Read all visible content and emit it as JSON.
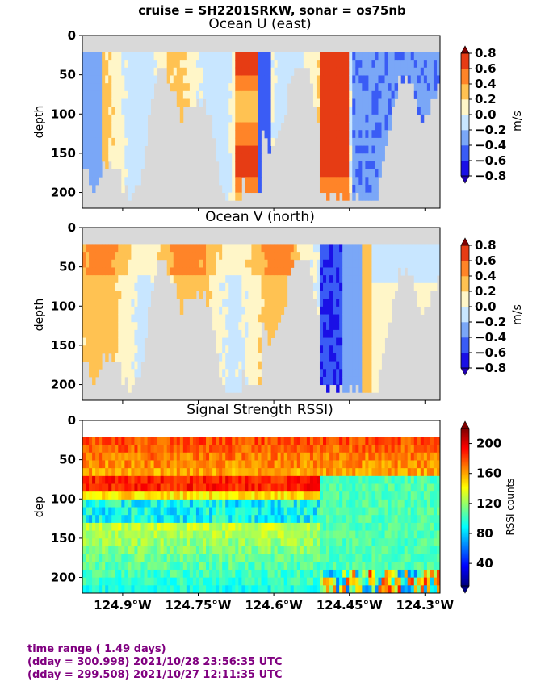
{
  "suptitle": "cruise = SH2201SRKW,  sonar = os75nb",
  "x_ticks": [
    "124.9°W",
    "124.75°W",
    "124.6°W",
    "124.45°W",
    "124.3°W"
  ],
  "footer": {
    "line1": "time range ( 1.49 days)",
    "line2": "(dday = 300.998) 2021/10/28 23:56:35 UTC",
    "line3": "(dday = 299.508) 2021/10/27 12:11:35 UTC"
  },
  "colors": {
    "missing": "#d9d9d9",
    "footer_text": "#800080"
  },
  "chart_data": [
    {
      "type": "heatmap",
      "title": "Ocean U (east)",
      "ylabel": "depth",
      "yticks": [
        0,
        50,
        100,
        150,
        200
      ],
      "ylim": [
        220,
        0
      ],
      "xlim": [
        -124.98,
        -124.27
      ],
      "colorbar": {
        "label": "m/s",
        "ticks": [
          "0.8",
          "0.6",
          "0.4",
          "0.2",
          "0.0",
          "−0.2",
          "−0.4",
          "−0.6",
          "−0.8"
        ],
        "range": [
          -0.8,
          0.8
        ],
        "colormap": "jet-discrete"
      }
    },
    {
      "type": "heatmap",
      "title": "Ocean V (north)",
      "ylabel": "depth",
      "yticks": [
        0,
        50,
        100,
        150,
        200
      ],
      "ylim": [
        220,
        0
      ],
      "xlim": [
        -124.98,
        -124.27
      ],
      "colorbar": {
        "label": "m/s",
        "ticks": [
          "0.8",
          "0.6",
          "0.4",
          "0.2",
          "0.0",
          "−0.2",
          "−0.4",
          "−0.6",
          "−0.8"
        ],
        "range": [
          -0.8,
          0.8
        ],
        "colormap": "jet-discrete"
      }
    },
    {
      "type": "heatmap",
      "title": "Signal Strength RSSI)",
      "ylabel": "dep",
      "yticks": [
        0,
        50,
        100,
        150,
        200
      ],
      "ylim": [
        220,
        0
      ],
      "xlim": [
        -124.98,
        -124.27
      ],
      "colorbar": {
        "label": "RSSI counts",
        "ticks": [
          "200",
          "160",
          "120",
          "80",
          "40"
        ],
        "range": [
          10,
          220
        ],
        "colormap": "jet"
      }
    }
  ]
}
